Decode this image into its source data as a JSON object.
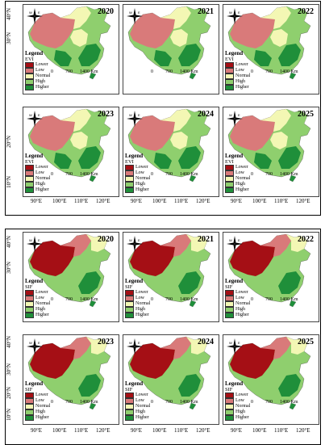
{
  "colors": {
    "lower": "#a50f15",
    "low": "#d97a7a",
    "normal": "#f3f7b4",
    "high": "#8fcf6e",
    "higher": "#1f8f3a"
  },
  "compass_labels": {
    "north": "N",
    "south": "S",
    "east": "E",
    "west": "W"
  },
  "legend_classes": [
    "Lower",
    "Low",
    "Normal",
    "High",
    "Higher"
  ],
  "legend_title": "Legend",
  "scale": {
    "zero": "0",
    "mid": "700",
    "end": "1400 Km"
  },
  "lat_labels": [
    "40°N",
    "30°N",
    "20°N",
    "10°N"
  ],
  "lon_labels": [
    "90°E",
    "100°E",
    "110°E",
    "120°E"
  ],
  "sections": [
    {
      "index": "EVI",
      "years": [
        "2020",
        "2021",
        "2022",
        "2023",
        "2024",
        "2025"
      ]
    },
    {
      "index": "SIF",
      "years": [
        "2020",
        "2021",
        "2022",
        "2023",
        "2024",
        "2025"
      ]
    }
  ]
}
